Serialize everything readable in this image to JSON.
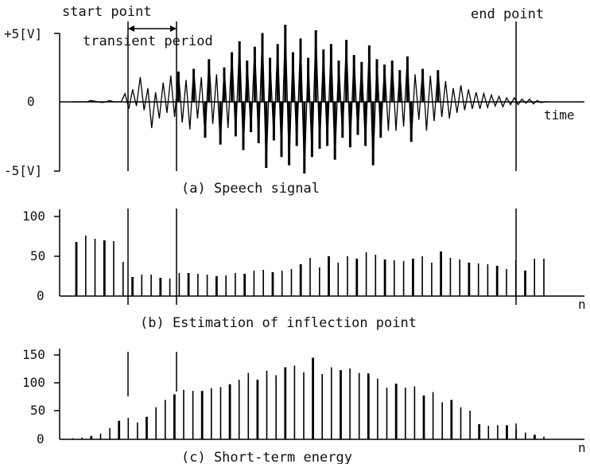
{
  "chart_data": [
    {
      "type": "line",
      "caption": "(a) Speech signal",
      "ytick_labels": [
        "+5[V]",
        "0",
        "-5[V]"
      ],
      "ylim": [
        -5,
        5
      ],
      "xlabel": "time",
      "annotations": [
        "start point",
        "transient period",
        "end point"
      ],
      "samples": [
        0,
        0,
        0,
        0,
        0,
        0.1,
        0.05,
        0,
        -0.05,
        0,
        0.1,
        0,
        0,
        0,
        0.6,
        -0.5,
        0.9,
        -0.3,
        1.8,
        -0.6,
        1.0,
        -1.9,
        0.7,
        -1.2,
        1.4,
        -0.8,
        1.9,
        -1.1,
        2.2,
        -1.5,
        1.6,
        -2.0,
        2.4,
        -1.2,
        1.8,
        -2.6,
        3.1,
        -1.6,
        2.0,
        -3.1,
        2.5,
        -1.9,
        3.6,
        -2.5,
        4.4,
        -3.5,
        3.0,
        -2.2,
        4.0,
        -3.0,
        5.0,
        -4.8,
        3.2,
        -2.8,
        4.2,
        -4.0,
        5.6,
        -4.6,
        3.6,
        -3.2,
        4.6,
        -5.2,
        3.2,
        -4.0,
        5.2,
        -3.4,
        3.8,
        -3.2,
        4.2,
        -4.2,
        3.0,
        -2.6,
        4.5,
        -3.3,
        3.4,
        -2.4,
        2.9,
        -3.2,
        4.1,
        -4.6,
        3.1,
        -2.6,
        2.7,
        -2.1,
        3.0,
        -2.1,
        2.3,
        -1.8,
        3.3,
        -2.9,
        2.0,
        -1.3,
        2.4,
        -2.1,
        1.9,
        -1.4,
        2.3,
        -1.1,
        1.5,
        -1.2,
        1.0,
        -0.8,
        1.2,
        -0.6,
        0.9,
        -0.5,
        0.7,
        -0.5,
        0.6,
        -0.4,
        0.5,
        -0.3,
        0.4,
        -0.35,
        0.3,
        -0.2,
        0.3,
        -0.2,
        0.2,
        -0.1,
        0.2,
        -0.15,
        0.1,
        -0.05,
        0,
        0
      ]
    },
    {
      "type": "bar",
      "caption": "(b) Estimation of inflection point",
      "ytick_labels": [
        "100",
        "50",
        "0"
      ],
      "ylim": [
        0,
        115
      ],
      "xlabel": "n",
      "values": [
        68,
        76,
        72,
        70,
        69,
        43,
        24,
        27,
        27,
        23,
        22,
        29,
        29,
        28,
        27,
        25,
        26,
        29,
        28,
        32,
        33,
        30,
        32,
        34,
        40,
        48,
        36,
        50,
        42,
        50,
        47,
        55,
        52,
        46,
        45,
        44,
        47,
        50,
        42,
        56,
        48,
        46,
        42,
        41,
        40,
        38,
        34,
        45,
        32,
        47,
        47
      ]
    },
    {
      "type": "bar",
      "caption": "(c) Short-term energy",
      "ytick_labels": [
        "150",
        "100",
        "50",
        "0"
      ],
      "ylim": [
        0,
        160
      ],
      "xlabel": "n",
      "values": [
        1,
        2,
        3,
        6,
        10,
        20,
        33,
        38,
        30,
        40,
        57,
        70,
        80,
        88,
        86,
        86,
        91,
        93,
        98,
        106,
        118,
        106,
        122,
        114,
        128,
        131,
        119,
        145,
        116,
        128,
        123,
        126,
        118,
        117,
        108,
        92,
        99,
        92,
        94,
        78,
        84,
        66,
        70,
        57,
        51,
        27,
        24,
        25,
        25,
        18,
        12,
        8,
        5
      ]
    }
  ]
}
